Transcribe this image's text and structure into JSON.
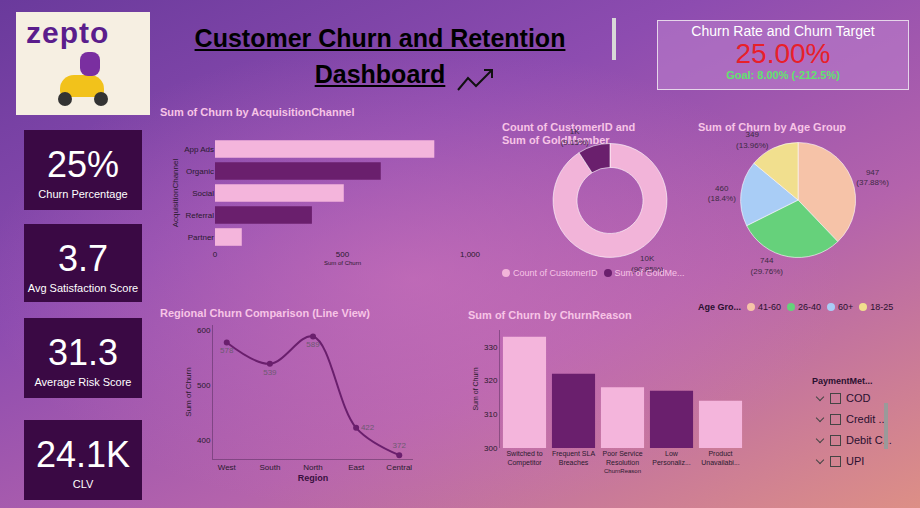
{
  "header": {
    "logo": "zepto",
    "title_lines": [
      "Customer Churn and Retention",
      "Dashboard"
    ]
  },
  "churn_target": {
    "title": "Churn Rate and Churn Target",
    "value": "25.00%",
    "goal": "Goal: 8.00% (-212.5%)"
  },
  "kpis": [
    {
      "value": "25%",
      "label": "Churn Percentage"
    },
    {
      "value": "3.7",
      "label": "Avg Satisfaction Score"
    },
    {
      "value": "31.3",
      "label": "Average Risk Score"
    },
    {
      "value": "24.1K",
      "label": "CLV"
    }
  ],
  "slicer": {
    "title": "PaymentMet...",
    "items": [
      "COD",
      "Credit ...",
      "Debit C...",
      "UPI"
    ]
  },
  "chart_data": [
    {
      "type": "bar",
      "title": "Sum of Churn by AcquisitionChannel",
      "orientation": "horizontal",
      "categories": [
        "App Ads",
        "Organic",
        "Social",
        "Referral",
        "Partner"
      ],
      "values": [
        860,
        650,
        505,
        380,
        105
      ],
      "colors": [
        "#f4b5dc",
        "#6a1f6d",
        "#f4b5dc",
        "#6a1f6d",
        "#f4b5dc"
      ],
      "xlabel": "Sum of Churn",
      "ylabel": "AcquisitionChannel",
      "xlim": [
        0,
        1000
      ],
      "xticks": [
        0,
        500,
        {
          "value": 1000,
          "label": "1,000"
        }
      ],
      "grid": false
    },
    {
      "type": "donut",
      "title": "Count of CustomerID and Sum of GoldMember",
      "categories": [
        "Count of CustomerID",
        "Sum of GoldMe..."
      ],
      "values": [
        10000,
        1007
      ],
      "value_labels": [
        "10K (90.85%)",
        "1K (9.15%)"
      ],
      "colors": [
        "#f2b4d9",
        "#6a1f6d"
      ],
      "data_labels": true,
      "legend": "bottom"
    },
    {
      "type": "pie",
      "title": "Sum of Churn by Age Group",
      "legend_title": "Age Gro...",
      "categories": [
        "41-60",
        "26-40",
        "60+",
        "18-25"
      ],
      "values": [
        947,
        744,
        460,
        349
      ],
      "value_labels": [
        "947 (37.88%)",
        "744 (29.76%)",
        "460 (18.4%)",
        "349 (13.96%)"
      ],
      "colors": [
        "#f6c3a8",
        "#66d17b",
        "#a9cdf6",
        "#f1df8e"
      ],
      "data_labels": true,
      "legend": "bottom"
    },
    {
      "type": "line",
      "title": "Regional Churn Comparison (Line View)",
      "categories": [
        "West",
        "South",
        "North",
        "East",
        "Central"
      ],
      "values": [
        578,
        539,
        589,
        422,
        372
      ],
      "color": "#6a1f6d",
      "xlabel": "Region",
      "ylabel": "Sum of Churn",
      "ylim": [
        365,
        610
      ],
      "yticks": [
        400,
        500,
        600
      ],
      "data_labels": true,
      "marker": "circle",
      "line_style": "spline",
      "grid": false
    },
    {
      "type": "bar",
      "title": "Sum of Churn by ChurnReason",
      "categories": [
        "Switched to Competitor",
        "Frequent SLA Breaches",
        "Poor Service Resolution",
        "Low Personaliz...",
        "Product Unavailabi..."
      ],
      "values": [
        333,
        322,
        318,
        317,
        314
      ],
      "colors": [
        "#f4b5dc",
        "#6a1f6d",
        "#f4b5dc",
        "#6a1f6d",
        "#f4b5dc"
      ],
      "xlabel": "ChurnReason",
      "ylabel": "Sum of Churn",
      "ylim": [
        300,
        335
      ],
      "yticks": [
        300,
        310,
        320,
        330
      ],
      "grid": false
    }
  ]
}
